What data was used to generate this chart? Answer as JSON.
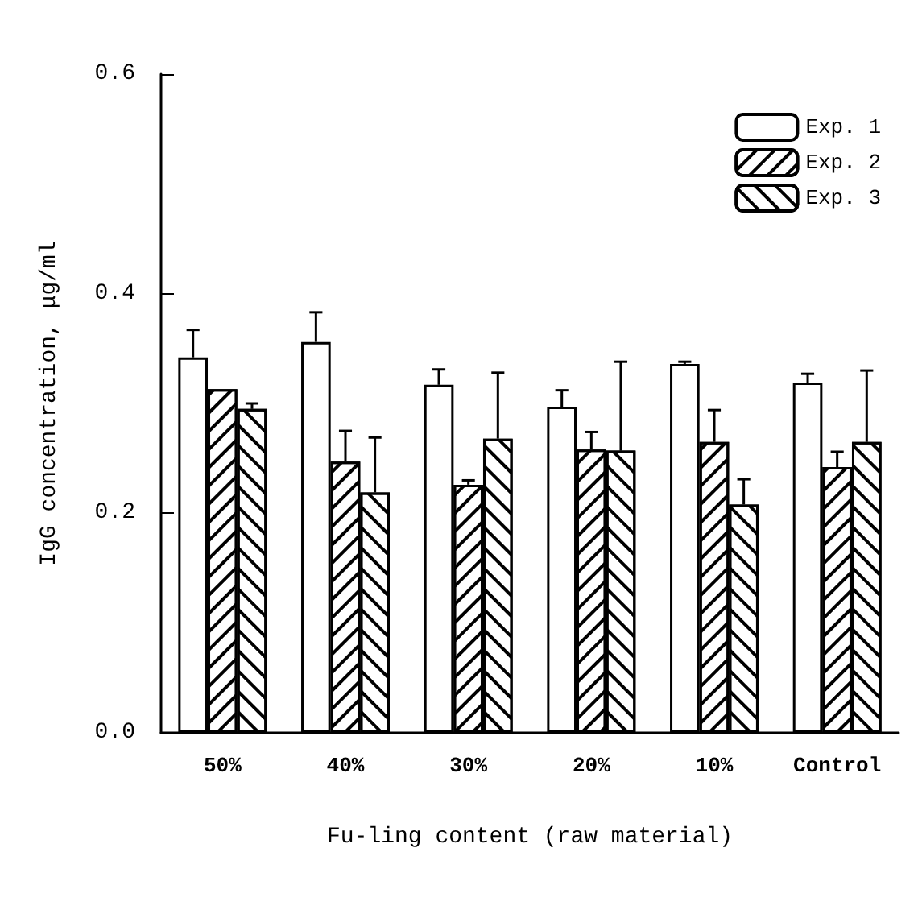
{
  "chart_data": {
    "type": "bar",
    "xlabel": "Fu-ling content (raw material)",
    "ylabel": "IgG concentration, μg/ml",
    "categories": [
      "50%",
      "40%",
      "30%",
      "20%",
      "10%",
      "Control"
    ],
    "series": [
      {
        "name": "Exp. 1",
        "color": "#ffffff",
        "values": [
          0.342,
          0.356,
          0.317,
          0.297,
          0.336,
          0.319
        ],
        "errors": [
          0.025,
          0.027,
          0.014,
          0.015,
          0.002,
          0.008
        ]
      },
      {
        "name": "Exp. 2",
        "color": "#ffffff",
        "values": [
          0.313,
          0.247,
          0.226,
          0.258,
          0.265,
          0.242
        ],
        "errors": [
          null,
          0.028,
          0.004,
          0.016,
          0.029,
          0.014
        ]
      },
      {
        "name": "Exp. 3",
        "color": "#ffffff",
        "values": [
          0.295,
          0.219,
          0.268,
          0.257,
          0.208,
          0.265
        ],
        "errors": [
          0.005,
          0.05,
          0.06,
          0.081,
          0.023,
          0.065
        ]
      }
    ],
    "ylim": [
      0,
      0.6
    ],
    "yticks": [
      {
        "value": 0,
        "label": "0.0"
      },
      {
        "value": 0.2,
        "label": "0.2"
      },
      {
        "value": 0.4,
        "label": "0.4"
      },
      {
        "value": 0.6,
        "label": "0.6"
      }
    ],
    "legend": "top right",
    "grid": false
  }
}
